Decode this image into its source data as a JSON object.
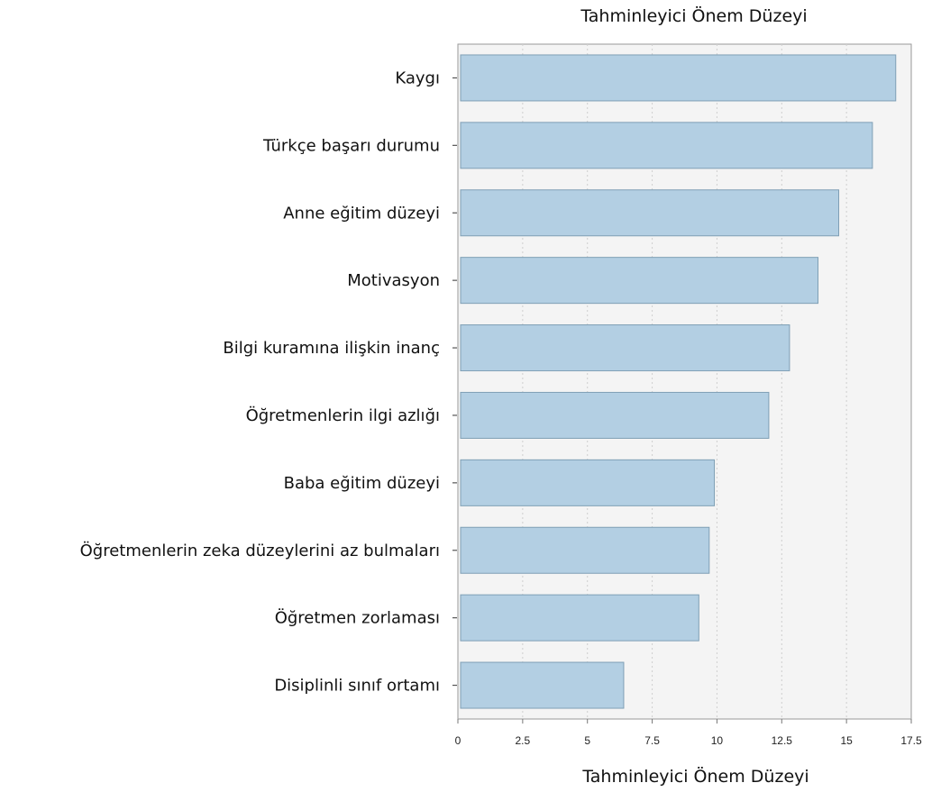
{
  "chart_data": {
    "type": "bar",
    "orientation": "horizontal",
    "title": "Tahminleyici Önem Düzeyi",
    "xlabel": "Tahminleyici Önem Düzeyi",
    "ylabel": "",
    "categories": [
      "Kaygı",
      "Türkçe başarı durumu",
      "Anne eğitim düzeyi",
      "Motivasyon",
      "Bilgi kuramına ilişkin inanç",
      "Öğretmenlerin ilgi azlığı",
      "Baba eğitim düzeyi",
      "Öğretmenlerin zeka düzeylerini az bulmaları",
      "Öğretmen zorlaması",
      "Disiplinli sınıf ortamı"
    ],
    "values": [
      16.9,
      16.0,
      14.7,
      13.9,
      12.8,
      12.0,
      9.9,
      9.7,
      9.3,
      6.4
    ],
    "xlim": [
      0,
      17.5
    ],
    "xticks": [
      "0",
      "2.5",
      "5",
      "7.5",
      "10",
      "12.5",
      "15",
      "17.5"
    ],
    "grid": "vertical dotted",
    "legend": "none",
    "colors": {
      "bar_fill": "#b3cfe3",
      "bar_stroke": "#7f9fb5",
      "plot_bg": "#f4f4f4",
      "frame": "#999999",
      "grid": "#cfcfcf"
    }
  }
}
